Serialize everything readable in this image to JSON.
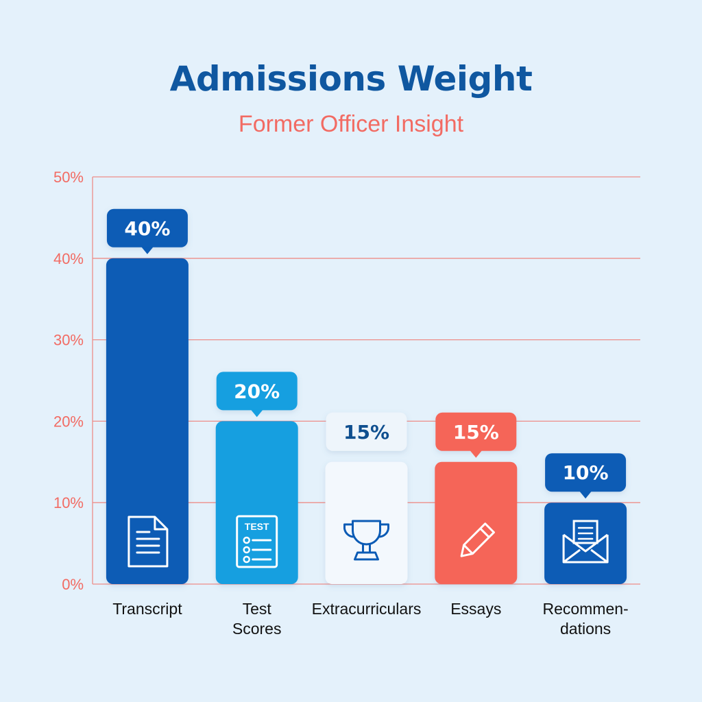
{
  "chart_data": {
    "type": "bar",
    "title": "Admissions Weight",
    "subtitle": "Former Officer Insight",
    "categories": [
      "Transcript",
      "Test Scores",
      "Extracurriculars",
      "Essays",
      "Recommendations"
    ],
    "category_lines": [
      [
        "Transcript"
      ],
      [
        "Test",
        "Scores"
      ],
      [
        "Extracurriculars"
      ],
      [
        "Essays"
      ],
      [
        "Recommen-",
        "dations"
      ]
    ],
    "values": [
      40,
      20,
      15,
      15,
      10
    ],
    "data_labels": [
      "40%",
      "20%",
      "15%",
      "15%",
      "10%"
    ],
    "yticks": [
      "0%",
      "10%",
      "20%",
      "30%",
      "40%",
      "50%"
    ],
    "ylim": [
      0,
      50
    ],
    "grid": true,
    "xlabel": "",
    "ylabel": "",
    "bar_colors": [
      "#0b5bb5",
      "#159fe0",
      "#f3f8fd",
      "#f56559",
      "#0b5bb5"
    ],
    "label_bg_colors": [
      "#0b5bb5",
      "#159fe0",
      "#eef5fb",
      "#f56559",
      "#0b5bb5"
    ],
    "label_text_colors": [
      "#ffffff",
      "#ffffff",
      "#0f4f8f",
      "#ffffff",
      "#ffffff"
    ],
    "icon_colors": [
      "#ffffff",
      "#ffffff",
      "#0b5bb5",
      "#ffffff",
      "#ffffff"
    ],
    "icons": [
      "document-icon",
      "test-sheet-icon",
      "trophy-icon",
      "pencil-icon",
      "envelope-icon"
    ],
    "icon_text": [
      "",
      "TEST",
      "",
      "",
      ""
    ],
    "grid_color": "#ee8d88"
  }
}
